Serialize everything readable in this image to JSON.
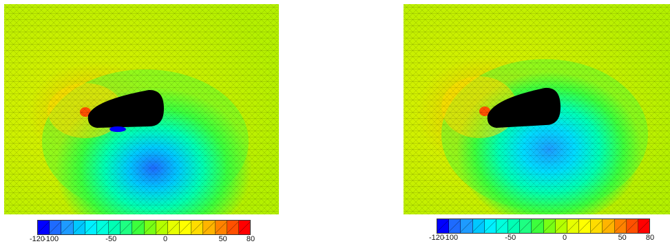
{
  "figures": [
    {
      "name": "left-field",
      "colorbar": {
        "colors": [
          "#0000ff",
          "#1e6bff",
          "#1e9bff",
          "#00c8ff",
          "#00f0ff",
          "#00ffdc",
          "#00ffb4",
          "#1eff82",
          "#3cff3c",
          "#78ff14",
          "#b4ff00",
          "#e6ff00",
          "#ffff00",
          "#ffdc00",
          "#ffb400",
          "#ff8200",
          "#ff5000",
          "#ff0000"
        ],
        "ticks": [
          "-120",
          "-100",
          "-50",
          "0",
          "50",
          "80"
        ]
      }
    },
    {
      "name": "right-field",
      "colorbar": {
        "colors": [
          "#0000ff",
          "#1e6bff",
          "#1e9bff",
          "#00c8ff",
          "#00f0ff",
          "#00ffdc",
          "#00ffb4",
          "#1eff82",
          "#3cff3c",
          "#78ff14",
          "#b4ff00",
          "#e6ff00",
          "#ffff00",
          "#ffdc00",
          "#ffb400",
          "#ff8200",
          "#ff5000",
          "#ff0000"
        ],
        "ticks": [
          "-120",
          "-100",
          "-50",
          "0",
          "50",
          "80"
        ]
      }
    }
  ]
}
